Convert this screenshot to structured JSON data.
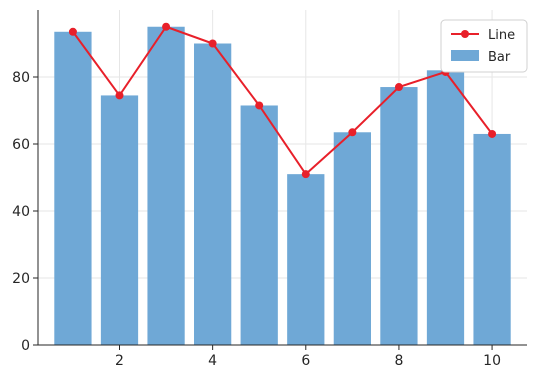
{
  "chart_data": {
    "type": "bar",
    "x": [
      1,
      2,
      3,
      4,
      5,
      6,
      7,
      8,
      9,
      10
    ],
    "series": [
      {
        "name": "Bar",
        "type": "bar",
        "values": [
          93.5,
          74.5,
          95,
          90,
          71.5,
          51,
          63.5,
          77,
          82,
          63
        ],
        "color": "#6fa8d6"
      },
      {
        "name": "Line",
        "type": "line",
        "values": [
          93.5,
          74.5,
          95,
          90,
          71.5,
          51,
          63.5,
          77,
          81.5,
          63
        ],
        "color": "#e8202a"
      }
    ],
    "xticks": [
      "2",
      "4",
      "6",
      "8",
      "10"
    ],
    "yticks": [
      "0",
      "20",
      "40",
      "60",
      "80"
    ],
    "title": "",
    "xlabel": "",
    "ylabel": "",
    "xlim": [
      0.25,
      10.75
    ],
    "ylim": [
      0,
      100
    ],
    "grid": true,
    "legend": "top-right"
  }
}
